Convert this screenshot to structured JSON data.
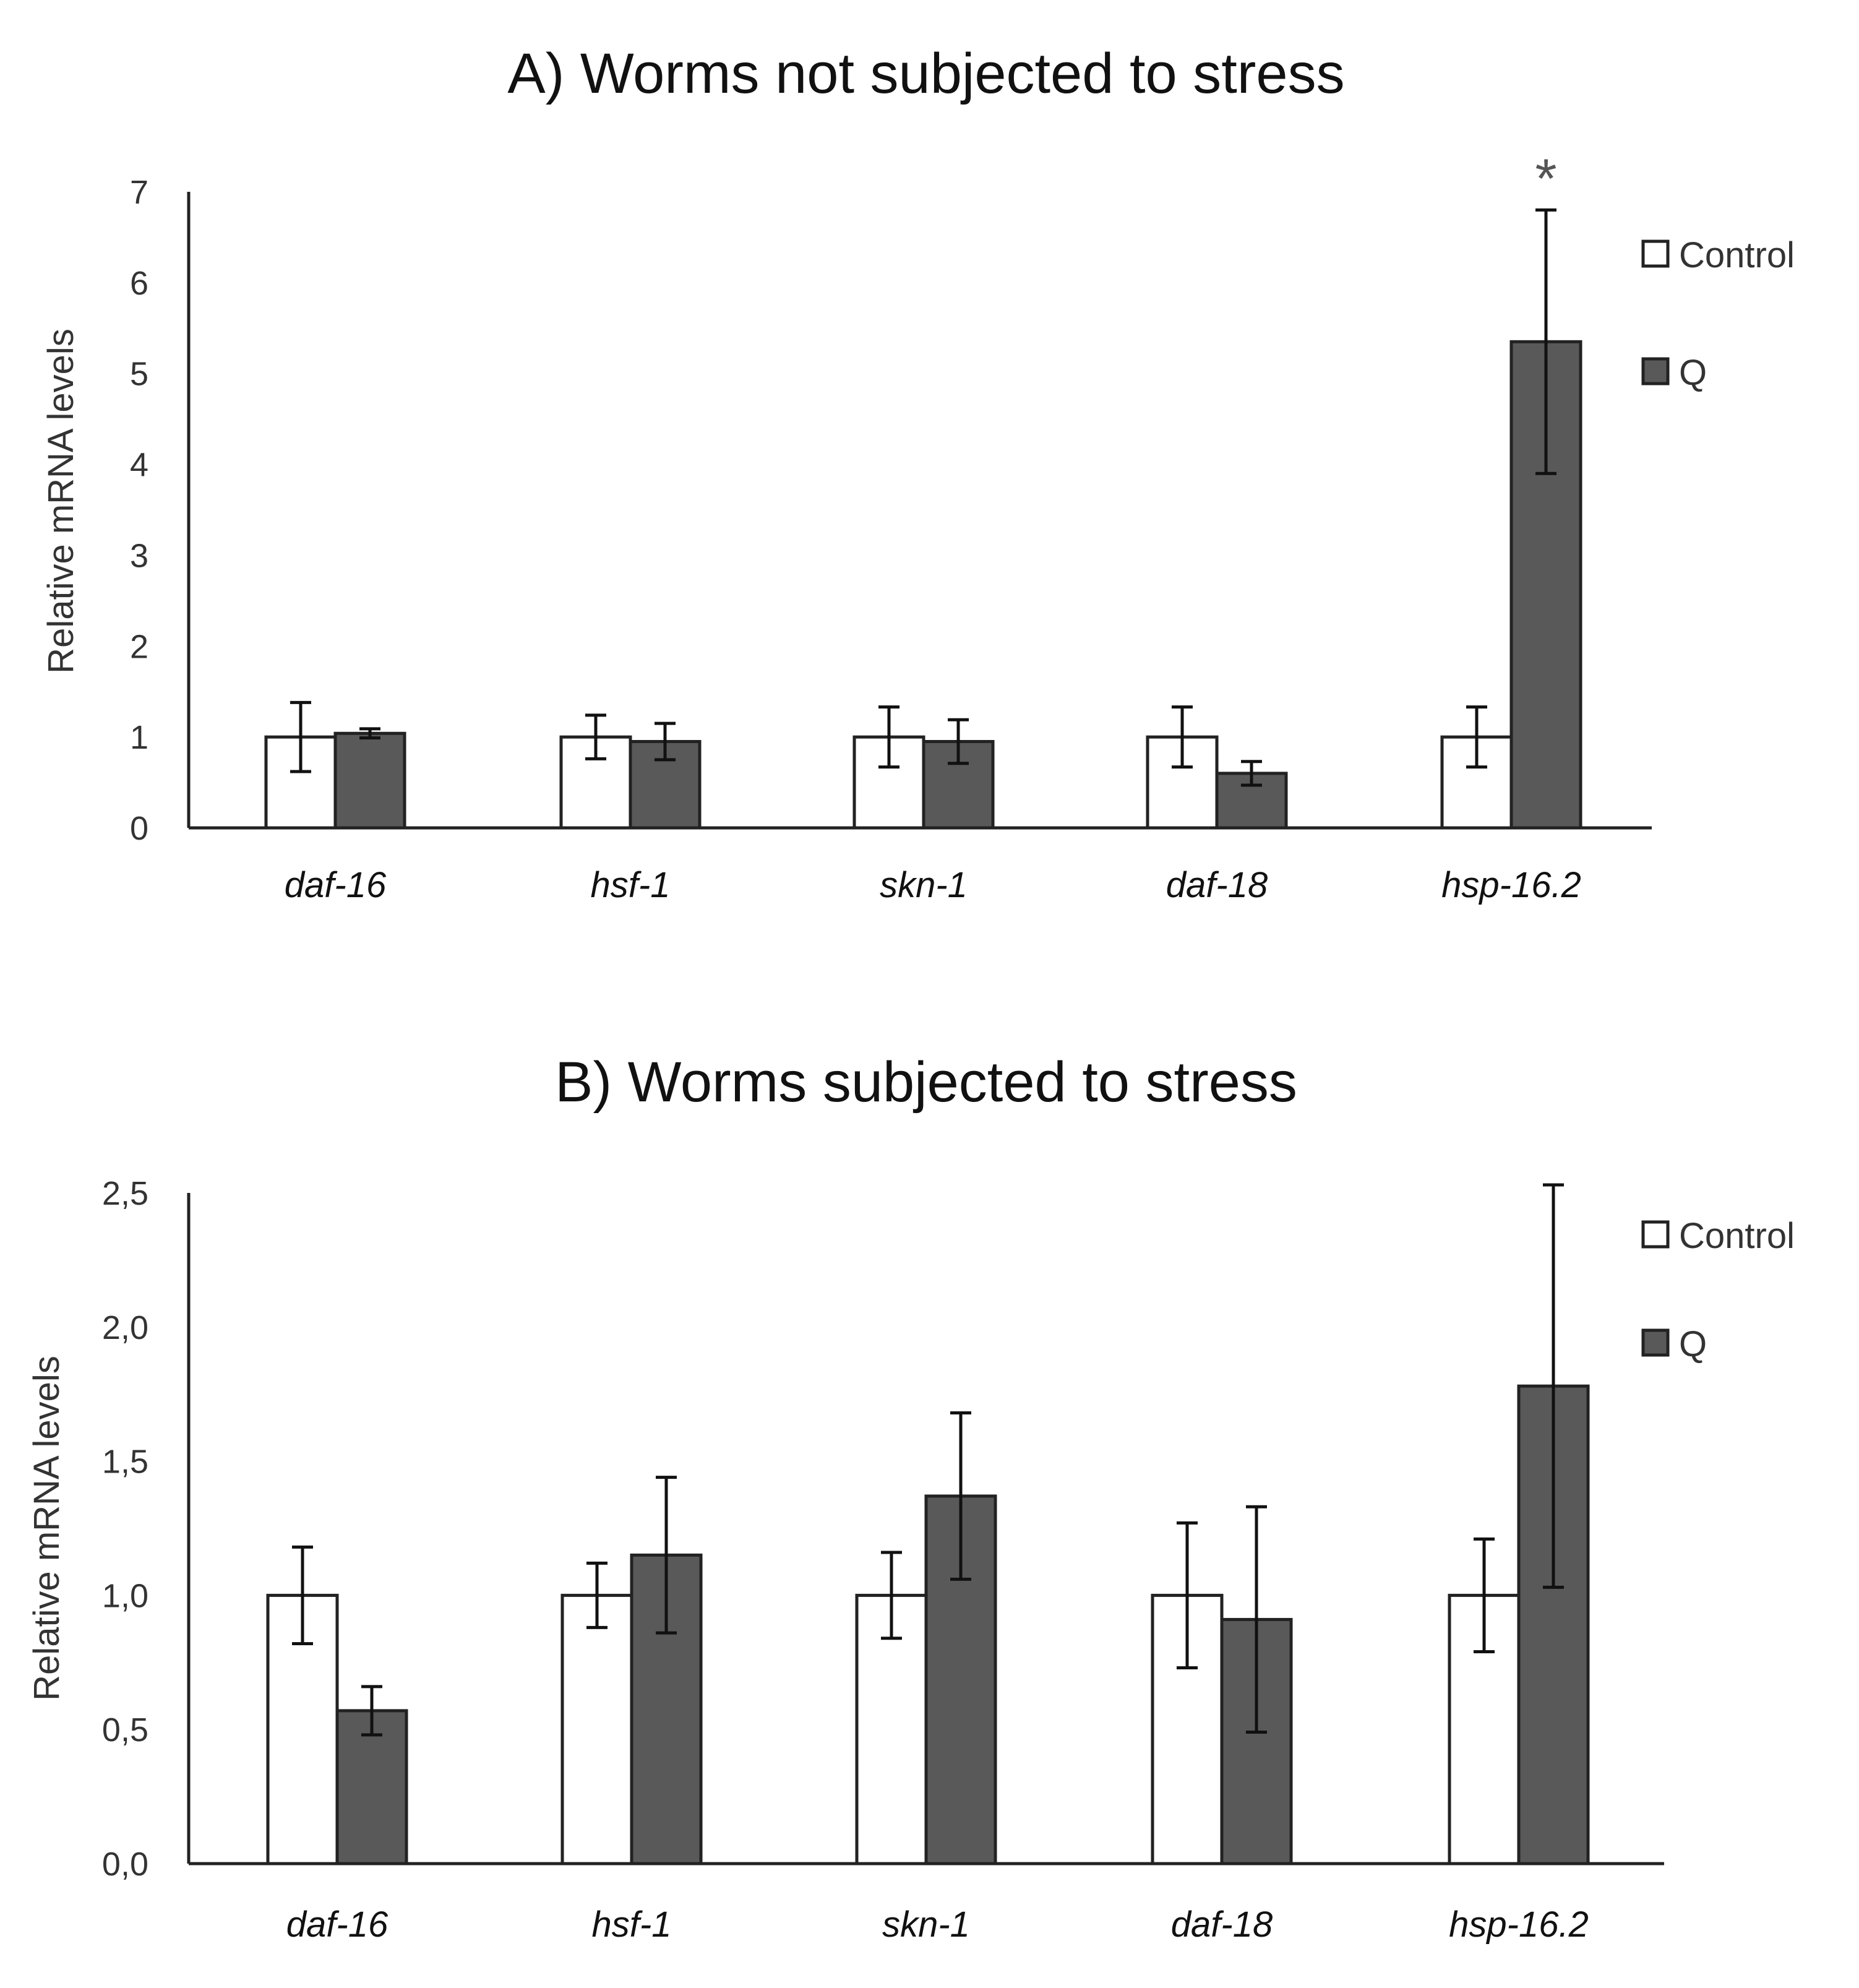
{
  "chart_data": [
    {
      "type": "bar",
      "title": "A) Worms not subjected to stress",
      "ylabel": "Relative mRNA levels",
      "xlabel": "",
      "categories": [
        "daf-16",
        "hsf-1",
        "skn-1",
        "daf-18",
        "hsp-16.2"
      ],
      "ylim": [
        0,
        7
      ],
      "yticks": [
        "0",
        "1",
        "2",
        "3",
        "4",
        "5",
        "6",
        "7"
      ],
      "series": [
        {
          "name": "Control",
          "values": [
            1.0,
            1.0,
            1.0,
            1.0,
            1.0
          ],
          "errors": [
            0.38,
            0.24,
            0.33,
            0.33,
            0.33
          ]
        },
        {
          "name": "Q",
          "values": [
            1.04,
            0.95,
            0.95,
            0.6,
            5.35
          ],
          "errors": [
            0.05,
            0.2,
            0.24,
            0.13,
            1.45
          ]
        }
      ],
      "annotations": [
        {
          "category": "hsp-16.2",
          "series": "Q",
          "text": "*"
        }
      ],
      "legend_position": "top-right",
      "grid": false
    },
    {
      "type": "bar",
      "title": "B) Worms subjected to stress",
      "ylabel": "Relative mRNA levels",
      "xlabel": "",
      "categories": [
        "daf-16",
        "hsf-1",
        "skn-1",
        "daf-18",
        "hsp-16.2"
      ],
      "ylim": [
        0,
        2.5
      ],
      "yticks": [
        "0,0",
        "0,5",
        "1,0",
        "1,5",
        "2,0",
        "2,5"
      ],
      "series": [
        {
          "name": "Control",
          "values": [
            1.0,
            1.0,
            1.0,
            1.0,
            1.0
          ],
          "errors": [
            0.18,
            0.12,
            0.16,
            0.27,
            0.21
          ]
        },
        {
          "name": "Q",
          "values": [
            0.57,
            1.15,
            1.37,
            0.91,
            1.78
          ],
          "errors": [
            0.09,
            0.29,
            0.31,
            0.42,
            0.75
          ]
        }
      ],
      "annotations": [],
      "legend_position": "top-right",
      "grid": false
    }
  ],
  "colors": {
    "control_fill": "#ffffff",
    "q_fill": "#595959",
    "axis": "#222222"
  }
}
